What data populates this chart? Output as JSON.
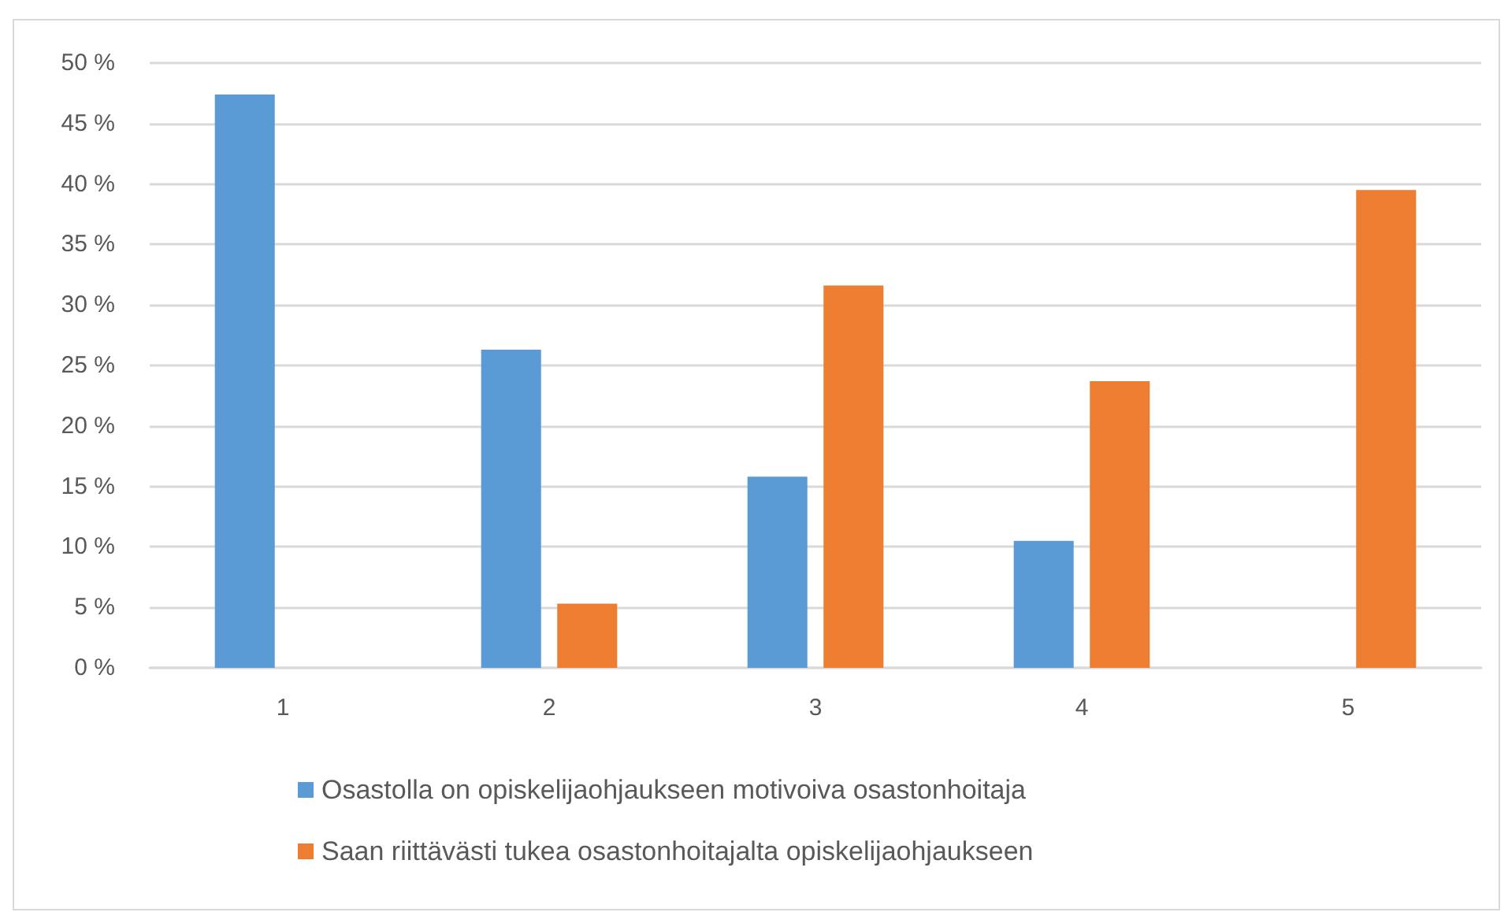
{
  "chart_data": {
    "type": "bar",
    "categories": [
      "1",
      "2",
      "3",
      "4",
      "5"
    ],
    "series": [
      {
        "name": "Osastolla on opiskelijaohjaukseen motivoiva osastonhoitaja",
        "color": "#5b9bd5",
        "values": [
          47.4,
          26.3,
          15.8,
          10.5,
          0
        ]
      },
      {
        "name": "Saan riittävästi tukea osastonhoitajalta opiskelijaohjaukseen",
        "color": "#ed7d31",
        "values": [
          0,
          5.3,
          31.6,
          23.7,
          39.5
        ]
      }
    ],
    "ylim": [
      0,
      50
    ],
    "yticks": [
      {
        "value": 0,
        "label": "0 %"
      },
      {
        "value": 5,
        "label": "5 %"
      },
      {
        "value": 10,
        "label": "10 %"
      },
      {
        "value": 15,
        "label": "15 %"
      },
      {
        "value": 20,
        "label": "20 %"
      },
      {
        "value": 25,
        "label": "25 %"
      },
      {
        "value": 30,
        "label": "30 %"
      },
      {
        "value": 35,
        "label": "35 %"
      },
      {
        "value": 40,
        "label": "40 %"
      },
      {
        "value": 45,
        "label": "45 %"
      },
      {
        "value": 50,
        "label": "50 %"
      }
    ],
    "grid": "y",
    "legend": "bottom"
  }
}
